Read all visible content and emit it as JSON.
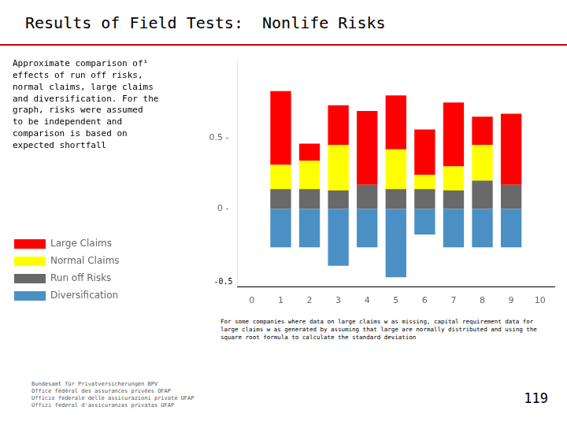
{
  "chart_data": {
    "type": "bar",
    "title": "Results of Field Tests:  Nonlife Risks",
    "stacked": true,
    "x": [
      1,
      2,
      3,
      4,
      5,
      6,
      7,
      8,
      9
    ],
    "series": [
      {
        "name": "Diversification",
        "color": "#4a90c4",
        "values": [
          -0.27,
          -0.27,
          -0.4,
          -0.27,
          -0.48,
          -0.18,
          -0.27,
          -0.27,
          -0.27
        ]
      },
      {
        "name": "Run off Risks",
        "color": "#696969",
        "values": [
          0.14,
          0.14,
          0.13,
          0.17,
          0.14,
          0.14,
          0.13,
          0.2,
          0.17
        ]
      },
      {
        "name": "Normal Claims",
        "color": "#ffff00",
        "values": [
          0.17,
          0.2,
          0.32,
          0.0,
          0.28,
          0.1,
          0.17,
          0.25,
          0.0
        ]
      },
      {
        "name": "Large Claims",
        "color": "#ff0000",
        "values": [
          0.52,
          0.12,
          0.28,
          0.52,
          0.38,
          0.32,
          0.45,
          0.2,
          0.5
        ]
      }
    ],
    "xlim": [
      0,
      10
    ],
    "xticks": [
      0,
      1,
      2,
      3,
      4,
      5,
      6,
      7,
      8,
      9,
      10
    ],
    "ylim": [
      -0.55,
      1.05
    ],
    "yticks": [
      {
        "value": 0,
        "label": "0 -"
      },
      {
        "value": 0.5,
        "label": "0.5 -"
      }
    ],
    "grid": false,
    "legend": "left",
    "annotations": [
      {
        "text": "Approximate comparison of¹\neffects of run off risks,\nnormal claims, large claims\nand diversification. For the\ngraph, risks were assumed\nto be independent and\ncomparison is based on\nexpected shortfall"
      },
      {
        "text": "For some companies where data on large claims w as missing, capital requirement data for\nlarge claims w as generated by assuming that large are normally distributed and using the\nsquare root formula to calculate the standard deviation"
      },
      {
        "text": "Bundesamt für Privatversicherungen BPV\nOffice fédéral des assurances privées OFAP\nUfficio federale delle assicurazioni private UFAP\nUffizi federal d'assicuranzas privatas UFAP"
      },
      {
        "text": "119"
      },
      {
        "text": "-0.5",
        "y": -0.54
      }
    ]
  }
}
